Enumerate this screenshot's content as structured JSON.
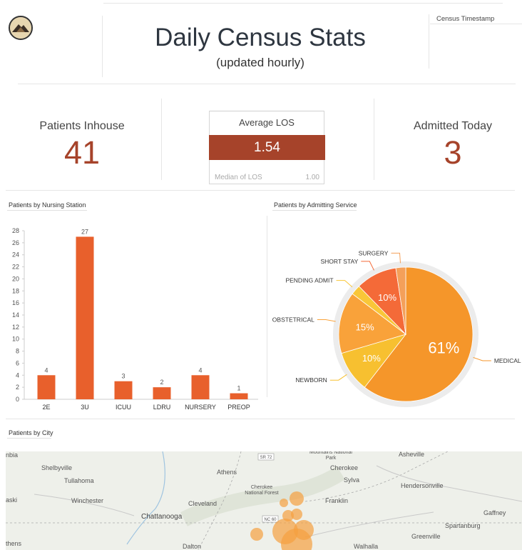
{
  "header": {
    "title": "Daily Census Stats",
    "subtitle": "(updated hourly)",
    "timestamp_label": "Census Timestamp"
  },
  "kpis": {
    "inhouse": {
      "label": "Patients Inhouse",
      "value": "41"
    },
    "los": {
      "label": "Average LOS",
      "value": "1.54",
      "median_label": "Median of LOS",
      "median_value": "1.00"
    },
    "admitted": {
      "label": "Admitted Today",
      "value": "3"
    }
  },
  "sections": {
    "nursing": "Patients by Nursing Station",
    "admitting": "Patients by Admitting Service",
    "city": "Patients by City"
  },
  "colors": {
    "accent": "#a6432a",
    "bar": "#e8602c"
  },
  "chart_data": [
    {
      "type": "bar",
      "title": "Patients by Nursing Station",
      "categories": [
        "2E",
        "3U",
        "ICUU",
        "LDRU",
        "NURSERY",
        "PREOP"
      ],
      "values": [
        4,
        27,
        3,
        2,
        4,
        1
      ],
      "ylim": [
        0,
        28
      ],
      "yticks": [
        0,
        2,
        4,
        6,
        8,
        10,
        12,
        14,
        16,
        18,
        20,
        22,
        24,
        26,
        28
      ],
      "grid": false
    },
    {
      "type": "pie",
      "title": "Patients by Admitting Service",
      "slices": [
        {
          "label": "MEDICAL",
          "value": 61,
          "pct_label": "61%",
          "color": "#f5962a"
        },
        {
          "label": "NEWBORN",
          "value": 10,
          "pct_label": "10%",
          "color": "#f7c030"
        },
        {
          "label": "OBSTETRICAL",
          "value": 15,
          "pct_label": "15%",
          "color": "#f9a23a"
        },
        {
          "label": "PENDING ADMIT",
          "value": 2.4,
          "pct_label": "",
          "color": "#f9c638"
        },
        {
          "label": "SHORT STAY",
          "value": 10,
          "pct_label": "10%",
          "color": "#f46a38"
        },
        {
          "label": "SURGERY",
          "value": 2.4,
          "pct_label": "",
          "color": "#f4a05a"
        }
      ]
    }
  ],
  "map": {
    "cities": [
      "Shelbyville",
      "Tullahoma",
      "Winchester",
      "Chattanooga",
      "Athens",
      "Cleveland",
      "Dalton",
      "Cherokee National Forest",
      "Mountains National Park",
      "Cherokee",
      "Sylva",
      "Franklin",
      "Walhalla",
      "Asheville",
      "Hendersonville",
      "Gaffney",
      "Spartanburg",
      "Greenville",
      "nbia",
      "aski",
      "thens"
    ],
    "road_labels": [
      "SR 72",
      "NC 60"
    ]
  }
}
